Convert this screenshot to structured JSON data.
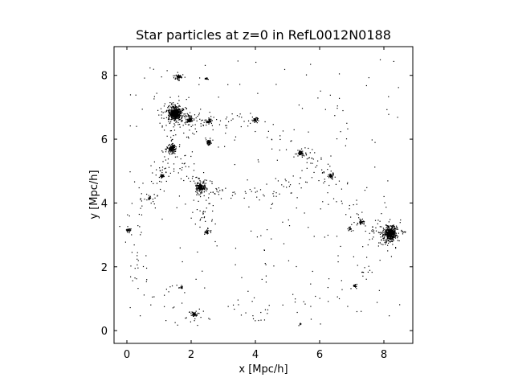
{
  "chart_data": {
    "type": "scatter",
    "title": "Star particles at z=0 in RefL0012N0188",
    "xlabel": "x [Mpc/h]",
    "ylabel": "y [Mpc/h]",
    "xlim": [
      -0.4,
      8.9
    ],
    "ylim": [
      -0.4,
      8.9
    ],
    "x_ticks": [
      0,
      2,
      4,
      6,
      8
    ],
    "y_ticks": [
      0,
      2,
      4,
      6,
      8
    ],
    "x_tick_labels": [
      "0",
      "2",
      "4",
      "6",
      "8"
    ],
    "y_tick_labels": [
      "0",
      "2",
      "4",
      "6",
      "8"
    ],
    "grid": false,
    "point_color": "#000000",
    "clusters": [
      {
        "x": 1.5,
        "y": 6.8,
        "spread": 0.12,
        "count": 700
      },
      {
        "x": 8.2,
        "y": 3.05,
        "spread": 0.12,
        "count": 650
      },
      {
        "x": 2.3,
        "y": 4.5,
        "spread": 0.08,
        "count": 220
      },
      {
        "x": 1.4,
        "y": 5.7,
        "spread": 0.07,
        "count": 160
      },
      {
        "x": 1.6,
        "y": 7.95,
        "spread": 0.05,
        "count": 90
      },
      {
        "x": 1.95,
        "y": 6.6,
        "spread": 0.07,
        "count": 90
      },
      {
        "x": 2.55,
        "y": 6.55,
        "spread": 0.06,
        "count": 70
      },
      {
        "x": 2.55,
        "y": 5.9,
        "spread": 0.05,
        "count": 60
      },
      {
        "x": 4.0,
        "y": 6.6,
        "spread": 0.05,
        "count": 50
      },
      {
        "x": 5.4,
        "y": 5.55,
        "spread": 0.06,
        "count": 60
      },
      {
        "x": 6.35,
        "y": 4.85,
        "spread": 0.06,
        "count": 45
      },
      {
        "x": 7.3,
        "y": 3.4,
        "spread": 0.05,
        "count": 45
      },
      {
        "x": 2.1,
        "y": 0.5,
        "spread": 0.06,
        "count": 50
      },
      {
        "x": 0.05,
        "y": 3.15,
        "spread": 0.05,
        "count": 40
      },
      {
        "x": 1.1,
        "y": 4.85,
        "spread": 0.05,
        "count": 35
      },
      {
        "x": 2.5,
        "y": 3.1,
        "spread": 0.05,
        "count": 30
      },
      {
        "x": 7.1,
        "y": 1.4,
        "spread": 0.04,
        "count": 20
      },
      {
        "x": 1.7,
        "y": 1.35,
        "spread": 0.04,
        "count": 15
      },
      {
        "x": 0.7,
        "y": 4.15,
        "spread": 0.04,
        "count": 20
      },
      {
        "x": 6.95,
        "y": 3.2,
        "spread": 0.04,
        "count": 20
      },
      {
        "x": 2.5,
        "y": 7.9,
        "spread": 0.03,
        "count": 12
      },
      {
        "x": 5.4,
        "y": 0.2,
        "spread": 0.04,
        "count": 8
      }
    ],
    "background_count": 650,
    "random_seed": 12345
  }
}
